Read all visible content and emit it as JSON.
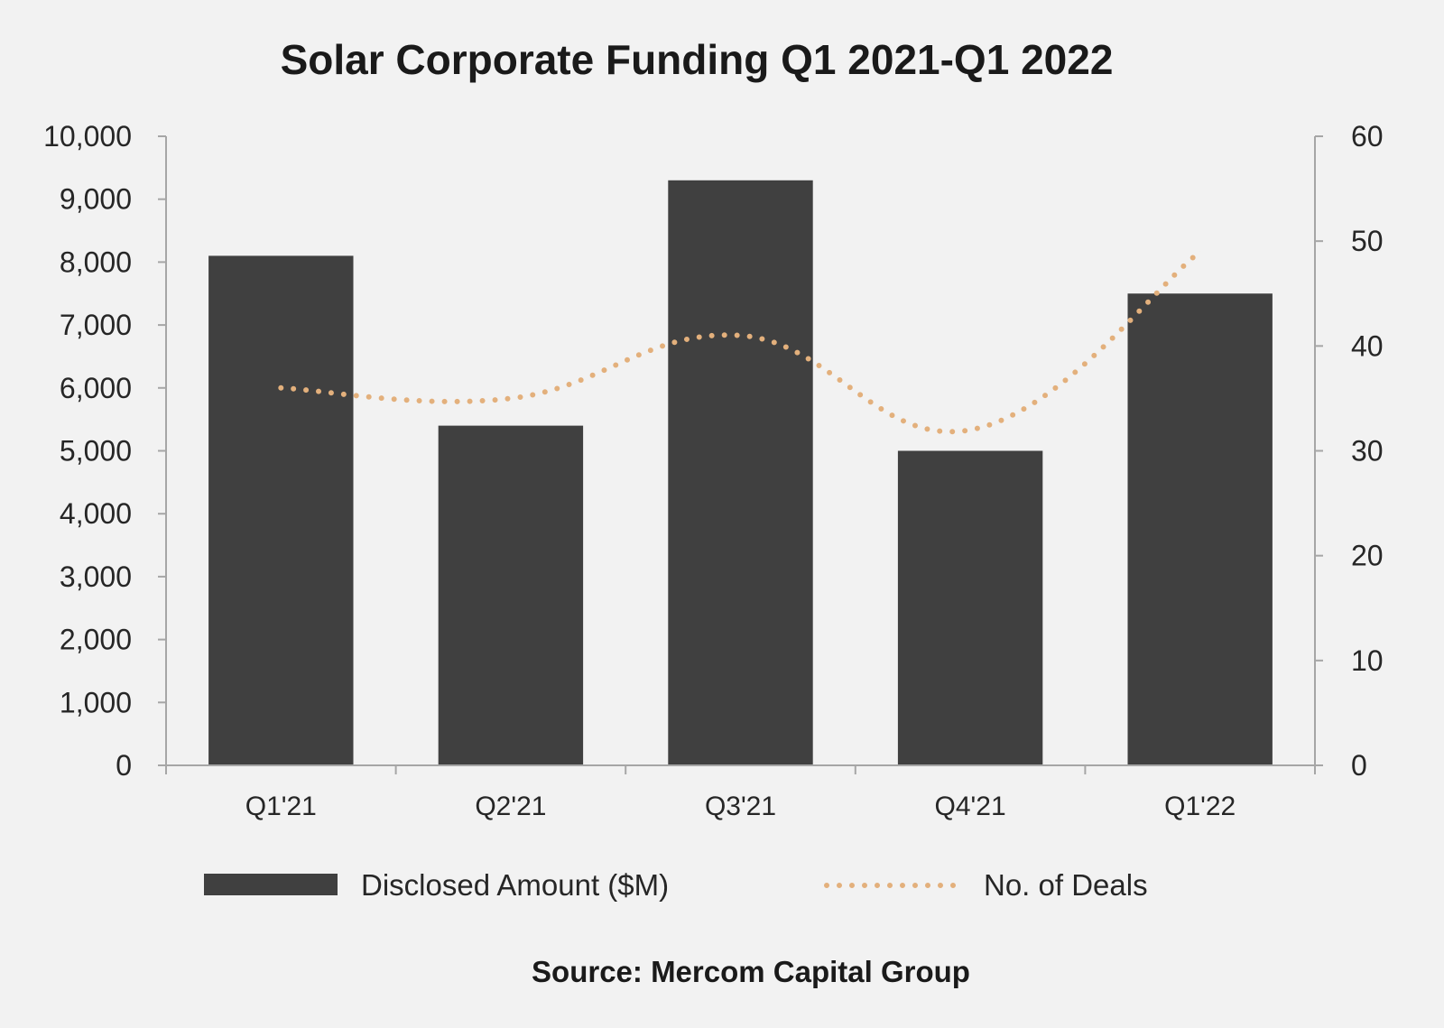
{
  "chart_data": {
    "type": "bar",
    "title": "Solar Corporate Funding Q1 2021-Q1 2022",
    "categories": [
      "Q1'21",
      "Q2'21",
      "Q3'21",
      "Q4'21",
      "Q1'22"
    ],
    "series": [
      {
        "name": "Disclosed Amount ($M)",
        "type": "bar",
        "axis": "left",
        "color": "#404040",
        "values": [
          8100,
          5400,
          9300,
          5000,
          7500
        ]
      },
      {
        "name": "No. of Deals",
        "type": "line",
        "style": "dotted",
        "axis": "right",
        "color": "#e3b07c",
        "values": [
          36,
          35,
          41,
          32,
          49
        ]
      }
    ],
    "y_left": {
      "min": 0,
      "max": 10000,
      "ticks": [
        "0",
        "1,000",
        "2,000",
        "3,000",
        "4,000",
        "5,000",
        "6,000",
        "7,000",
        "8,000",
        "9,000",
        "10,000"
      ]
    },
    "y_right": {
      "min": 0,
      "max": 60,
      "ticks": [
        "0",
        "10",
        "20",
        "30",
        "40",
        "50",
        "60"
      ]
    },
    "grid": false,
    "legend": "bottom",
    "source": "Source: Mercom Capital Group"
  }
}
